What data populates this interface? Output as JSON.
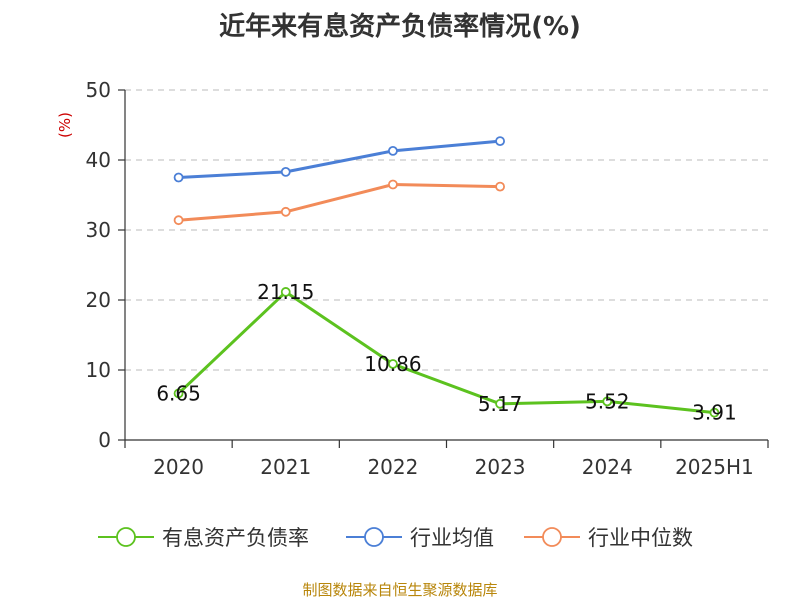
{
  "title": "近年来有息资产负债率情况(%)",
  "footer": "制图数据来自恒生聚源数据库",
  "chart_data": {
    "type": "line",
    "title": "近年来有息资产负债率情况(%)",
    "ylabel": "(%)",
    "xlabel": "",
    "categories": [
      "2020",
      "2021",
      "2022",
      "2023",
      "2024",
      "2025H1"
    ],
    "ylim": [
      0,
      50
    ],
    "yticks": [
      0,
      10,
      20,
      30,
      40,
      50
    ],
    "grid": "horizontal-dashed",
    "legend_position": "bottom",
    "series": [
      {
        "name": "有息资产负债率",
        "color": "#5cc21f",
        "values": [
          6.65,
          21.15,
          10.86,
          5.17,
          5.52,
          3.91
        ],
        "labels": [
          "6.65",
          "21.15",
          "10.86",
          "5.17",
          "5.52",
          "3.91"
        ],
        "show_labels": true
      },
      {
        "name": "行业均值",
        "color": "#4b7fd6",
        "values": [
          37.5,
          38.3,
          41.3,
          42.7,
          null,
          null
        ],
        "show_labels": false
      },
      {
        "name": "行业中位数",
        "color": "#f28b59",
        "values": [
          31.4,
          32.6,
          36.5,
          36.2,
          null,
          null
        ],
        "show_labels": false
      }
    ]
  }
}
